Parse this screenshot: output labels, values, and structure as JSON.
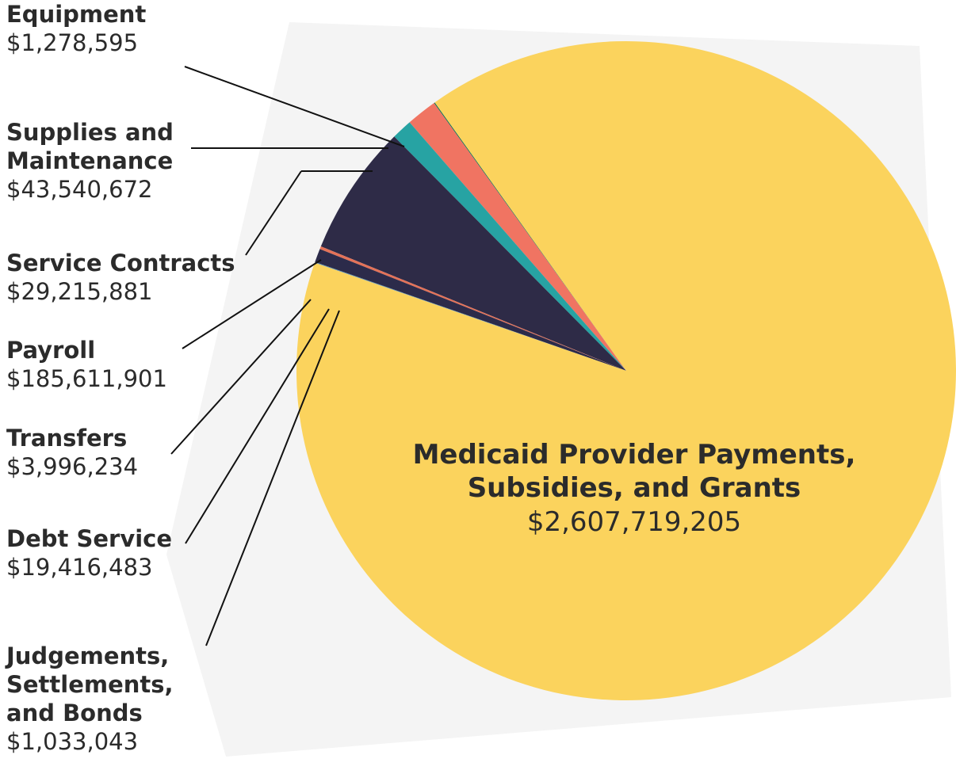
{
  "chart_data": {
    "type": "pie",
    "title": "",
    "colors": {
      "medicaid": "#fbd35d",
      "equipment": "#016e52",
      "supplies": "#f07462",
      "service_contracts": "#27a3a3",
      "payroll": "#2e2b47",
      "transfers": "#e47258",
      "debt_service": "#2c2b4a",
      "judgements": "#5d95b7",
      "backdrop": "#f4f4f4"
    },
    "slices": [
      {
        "key": "medicaid",
        "name_lines": [
          "Medicaid Provider Payments,",
          "Subsidies, and Grants"
        ],
        "value_text": "$2,607,719,205",
        "value": 2607719205
      },
      {
        "key": "equipment",
        "name_lines": [
          "Equipment"
        ],
        "value_text": "$1,278,595",
        "value": 1278595
      },
      {
        "key": "supplies",
        "name_lines": [
          "Supplies and",
          "Maintenance"
        ],
        "value_text": "$43,540,672",
        "value": 43540672
      },
      {
        "key": "service_contracts",
        "name_lines": [
          "Service Contracts"
        ],
        "value_text": "$29,215,881",
        "value": 29215881
      },
      {
        "key": "payroll",
        "name_lines": [
          "Payroll"
        ],
        "value_text": "$185,611,901",
        "value": 185611901
      },
      {
        "key": "transfers",
        "name_lines": [
          "Transfers"
        ],
        "value_text": "$3,996,234",
        "value": 3996234
      },
      {
        "key": "debt_service",
        "name_lines": [
          "Debt Service"
        ],
        "value_text": "$19,416,483",
        "value": 19416483
      },
      {
        "key": "judgements",
        "name_lines": [
          "Judgements,",
          "Settlements,",
          "and Bonds"
        ],
        "value_text": "$1,033,043",
        "value": 1033043
      }
    ]
  }
}
